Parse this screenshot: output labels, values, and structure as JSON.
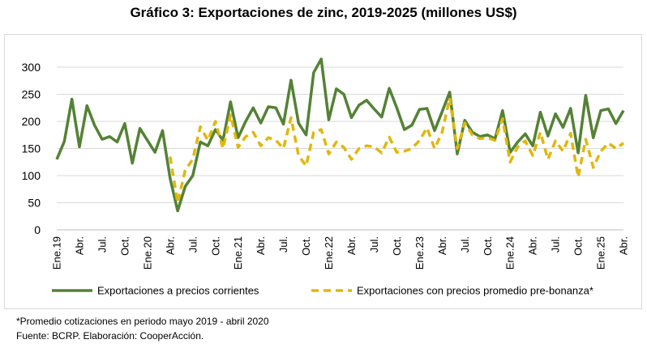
{
  "chart_data": {
    "type": "line",
    "title": "Gráfico 3: Exportaciones de zinc, 2019-2025 (millones US$)",
    "ylim": [
      0,
      300
    ],
    "yticks": [
      0,
      50,
      100,
      150,
      200,
      250,
      300
    ],
    "grid": "horizontal",
    "legend_position": "bottom",
    "x_tick_labels": [
      {
        "index": 0,
        "label": "Ene.19"
      },
      {
        "index": 3,
        "label": "Abr."
      },
      {
        "index": 6,
        "label": "Jul."
      },
      {
        "index": 9,
        "label": "Oct."
      },
      {
        "index": 12,
        "label": "Ene.20"
      },
      {
        "index": 15,
        "label": "Abr."
      },
      {
        "index": 18,
        "label": "Jul."
      },
      {
        "index": 21,
        "label": "Oct."
      },
      {
        "index": 24,
        "label": "Ene.21"
      },
      {
        "index": 27,
        "label": "Abr."
      },
      {
        "index": 30,
        "label": "Jul."
      },
      {
        "index": 33,
        "label": "Oct."
      },
      {
        "index": 36,
        "label": "Ene.22"
      },
      {
        "index": 39,
        "label": "Abr."
      },
      {
        "index": 42,
        "label": "Jul."
      },
      {
        "index": 45,
        "label": "Oct."
      },
      {
        "index": 48,
        "label": "Ene.23"
      },
      {
        "index": 51,
        "label": "Abr."
      },
      {
        "index": 54,
        "label": "Jul."
      },
      {
        "index": 57,
        "label": "Oct."
      },
      {
        "index": 60,
        "label": "Ene.24"
      },
      {
        "index": 63,
        "label": "Abr."
      },
      {
        "index": 66,
        "label": "Jul."
      },
      {
        "index": 69,
        "label": "Oct."
      },
      {
        "index": 72,
        "label": "Ene.25"
      },
      {
        "index": 75,
        "label": "Abr."
      }
    ],
    "series": [
      {
        "name": "Exportaciones a precios corrientes",
        "color": "#548235",
        "style": "solid",
        "values": [
          130,
          163,
          241,
          153,
          229,
          193,
          167,
          172,
          162,
          196,
          123,
          187,
          165,
          143,
          183,
          95,
          35,
          80,
          100,
          162,
          155,
          185,
          165,
          236,
          170,
          200,
          225,
          197,
          227,
          225,
          195,
          276,
          197,
          175,
          290,
          315,
          203,
          260,
          250,
          207,
          230,
          239,
          223,
          208,
          261,
          225,
          185,
          193,
          222,
          224,
          183,
          218,
          254,
          140,
          202,
          180,
          172,
          175,
          168,
          220,
          143,
          162,
          177,
          155,
          217,
          173,
          214,
          189,
          224,
          142,
          248,
          170,
          220,
          223,
          196,
          220
        ]
      },
      {
        "name": "Exportaciones con precios promedio pre-bonanza*",
        "color": "#e1b70c",
        "style": "dashed",
        "values": [
          null,
          null,
          null,
          null,
          null,
          null,
          null,
          null,
          null,
          null,
          null,
          null,
          null,
          null,
          null,
          135,
          50,
          110,
          130,
          190,
          165,
          200,
          150,
          212,
          152,
          172,
          180,
          155,
          170,
          165,
          150,
          207,
          137,
          118,
          180,
          185,
          140,
          162,
          152,
          130,
          150,
          155,
          153,
          142,
          171,
          143,
          145,
          150,
          165,
          188,
          150,
          180,
          243,
          150,
          197,
          175,
          168,
          170,
          165,
          205,
          125,
          153,
          164,
          137,
          180,
          130,
          164,
          145,
          178,
          97,
          167,
          115,
          145,
          160,
          150,
          160
        ]
      }
    ]
  },
  "notes": {
    "footnote": "*Promedio cotizaciones en periodo mayo 2019 - abril 2020",
    "source": "Fuente: BCRP. Elaboración: CooperAcción."
  }
}
